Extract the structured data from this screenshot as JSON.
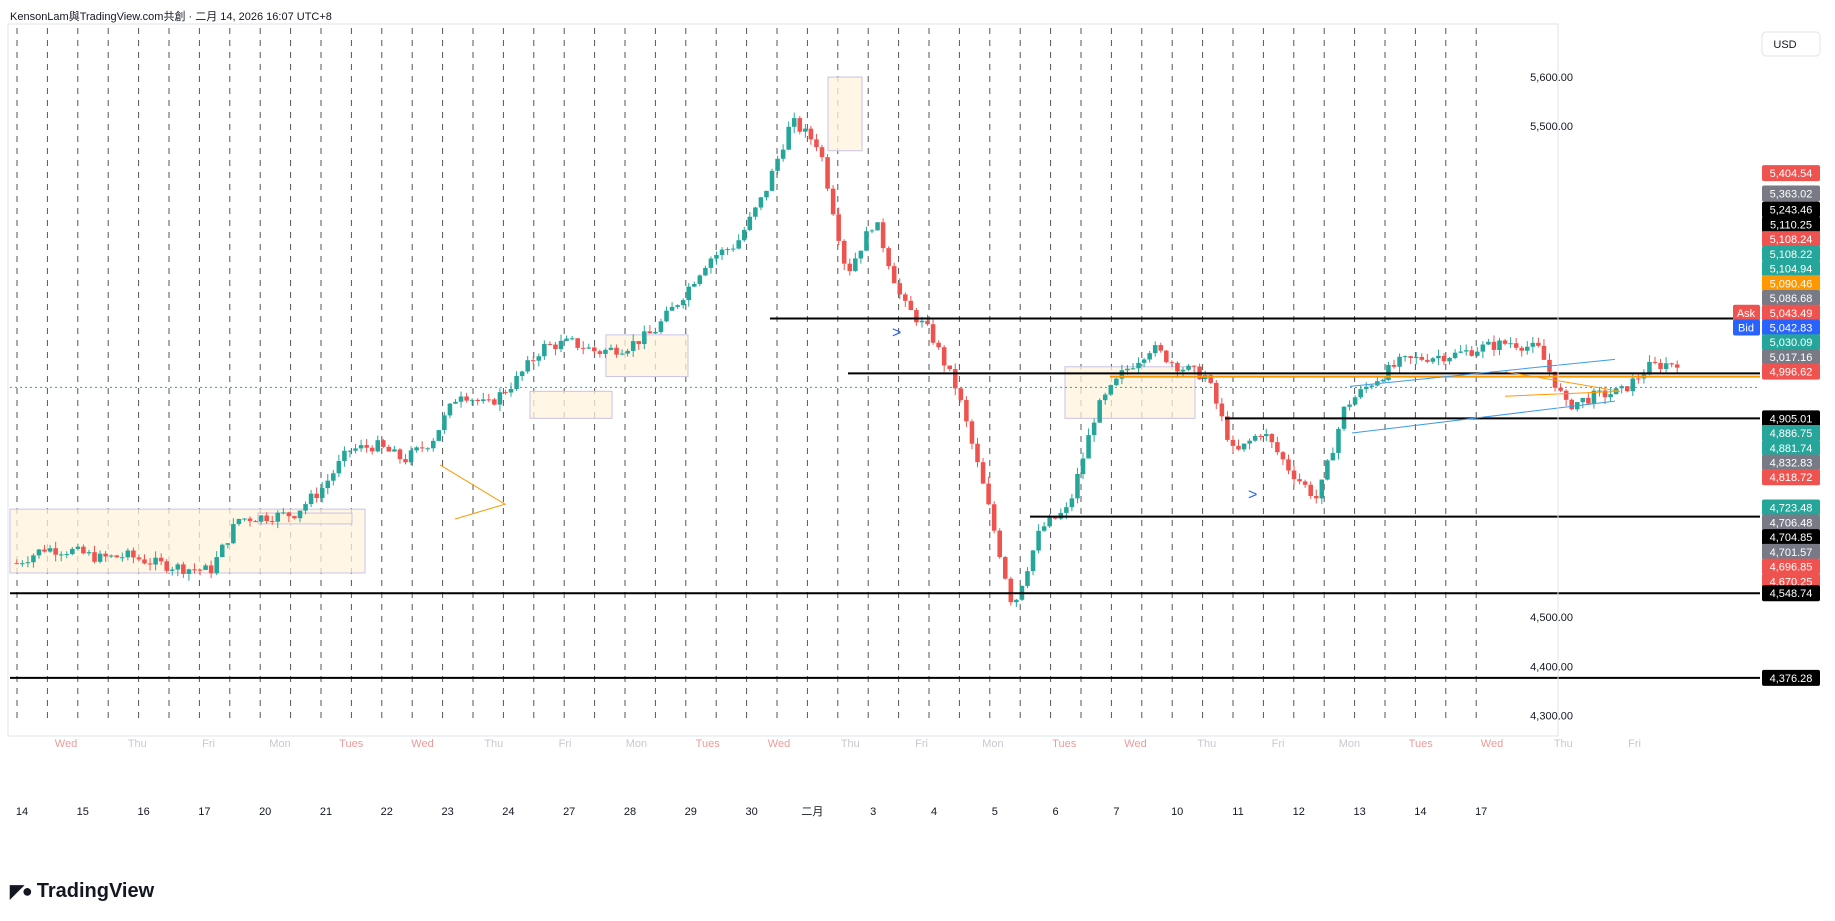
{
  "header": {
    "text": "KensonLam與TradingView.com共創 · 二月 14, 2026 16:07 UTC+8"
  },
  "brand": {
    "name": "TradingView"
  },
  "currency": "USD",
  "colors": {
    "up": "#26a69a",
    "down": "#ef5350",
    "accent": "#ff9800",
    "blue": "#2962ff",
    "box": "#fff3dc"
  },
  "chart_data": {
    "type": "candlestick",
    "xlabel": "",
    "ylabel": "",
    "x_tick_labels": [
      "14",
      "15",
      "16",
      "17",
      "20",
      "21",
      "22",
      "23",
      "24",
      "27",
      "28",
      "29",
      "30",
      "二月",
      "3",
      "4",
      "5",
      "6",
      "7",
      "10",
      "11",
      "12",
      "13",
      "14",
      "17"
    ],
    "weekday_labels": [
      "Wed",
      "Thu",
      "Fri",
      "Mon",
      "Tues",
      "Wed",
      "Thu",
      "Fri",
      "Mon",
      "Tues",
      "Wed",
      "Thu",
      "Fri",
      "Mon",
      "Tues",
      "Wed",
      "Thu",
      "Fri",
      "Mon",
      "Tues",
      "Wed",
      "Thu",
      "Fri"
    ],
    "y_ticks": [
      "5,600.00",
      "5,500.00",
      "4,500.00",
      "4,400.00",
      "4,300.00"
    ],
    "ylim": [
      4260,
      5700
    ],
    "horizontal_levels": [
      5108.22,
      4996.62,
      4905.01,
      4704.85,
      4548.74,
      4376.28
    ],
    "price_tags": [
      {
        "value": "5,404.54",
        "color": "#ef5350",
        "y": 5404.54
      },
      {
        "value": "5,363.02",
        "color": "#787b86",
        "y": 5363.02
      },
      {
        "value": "5,243.46",
        "color": "#000000",
        "y": 5330
      },
      {
        "value": "5,110.25",
        "color": "#000000",
        "y": 5300
      },
      {
        "value": "5,108.24",
        "color": "#ef5350",
        "y": 5270
      },
      {
        "value": "5,108.22",
        "color": "#26a69a",
        "y": 5240
      },
      {
        "value": "5,104.94",
        "color": "#26a69a",
        "y": 5210
      },
      {
        "value": "5,090.46",
        "color": "#ff9800",
        "y": 5180
      },
      {
        "value": "5,086.68",
        "color": "#787b86",
        "y": 5150
      },
      {
        "value": "5,043.49",
        "color": "#ef5350",
        "y": 5120,
        "tag": "Ask"
      },
      {
        "value": "5,042.83",
        "color": "#2962ff",
        "y": 5090,
        "tag": "Bid"
      },
      {
        "value": "5,030.09",
        "color": "#26a69a",
        "y": 5060
      },
      {
        "value": "5,017.16",
        "color": "#787b86",
        "y": 5030
      },
      {
        "value": "4,996.62",
        "color": "#ef5350",
        "y": 5000
      },
      {
        "value": "4,905.01",
        "color": "#000000",
        "y": 4905.01
      },
      {
        "value": "4,886.75",
        "color": "#26a69a",
        "y": 4875
      },
      {
        "value": "4,881.74",
        "color": "#26a69a",
        "y": 4845
      },
      {
        "value": "4,832.83",
        "color": "#787b86",
        "y": 4815
      },
      {
        "value": "4,818.72",
        "color": "#ef5350",
        "y": 4785
      },
      {
        "value": "4,723.48",
        "color": "#26a69a",
        "y": 4723.48
      },
      {
        "value": "4,706.48",
        "color": "#787b86",
        "y": 4693
      },
      {
        "value": "4,704.85",
        "color": "#000000",
        "y": 4663
      },
      {
        "value": "4,701.57",
        "color": "#787b86",
        "y": 4633
      },
      {
        "value": "4,696.85",
        "color": "#ef5350",
        "y": 4603
      },
      {
        "value": "4,670.25",
        "color": "#ef5350",
        "y": 4573
      },
      {
        "value": "4,548.74",
        "color": "#000000",
        "y": 4548.74
      },
      {
        "value": "4,376.28",
        "color": "#000000",
        "y": 4376.28
      }
    ],
    "close_path": [
      [
        0,
        4610
      ],
      [
        1,
        4640
      ],
      [
        2,
        4635
      ],
      [
        3,
        4620
      ],
      [
        4,
        4625
      ],
      [
        5,
        4610
      ],
      [
        6,
        4600
      ],
      [
        7,
        4595
      ],
      [
        8,
        4700
      ],
      [
        9,
        4705
      ],
      [
        10,
        4710
      ],
      [
        11,
        4760
      ],
      [
        12,
        4840
      ],
      [
        13,
        4850
      ],
      [
        14,
        4820
      ],
      [
        15,
        4860
      ],
      [
        16,
        4960
      ],
      [
        17,
        4930
      ],
      [
        18,
        4980
      ],
      [
        19,
        5050
      ],
      [
        20,
        5060
      ],
      [
        21,
        5040
      ],
      [
        22,
        5050
      ],
      [
        23,
        5080
      ],
      [
        24,
        5150
      ],
      [
        25,
        5230
      ],
      [
        26,
        5260
      ],
      [
        27,
        5360
      ],
      [
        28,
        5510
      ],
      [
        29,
        5460
      ],
      [
        30,
        5200
      ],
      [
        31,
        5310
      ],
      [
        32,
        5140
      ],
      [
        33,
        5080
      ],
      [
        34,
        4960
      ],
      [
        35,
        4750
      ],
      [
        36,
        4520
      ],
      [
        37,
        4680
      ],
      [
        38,
        4720
      ],
      [
        39,
        4920
      ],
      [
        40,
        5000
      ],
      [
        41,
        5050
      ],
      [
        42,
        5010
      ],
      [
        43,
        4990
      ],
      [
        44,
        4830
      ],
      [
        45,
        4880
      ],
      [
        46,
        4800
      ],
      [
        47,
        4740
      ],
      [
        48,
        4930
      ],
      [
        49,
        4980
      ],
      [
        50,
        5020
      ],
      [
        51,
        5030
      ],
      [
        52,
        5035
      ],
      [
        53,
        5050
      ],
      [
        54,
        5060
      ],
      [
        55,
        5045
      ],
      [
        56,
        4930
      ],
      [
        57,
        4950
      ],
      [
        58,
        4960
      ],
      [
        59,
        5010
      ],
      [
        60,
        5020
      ]
    ]
  }
}
